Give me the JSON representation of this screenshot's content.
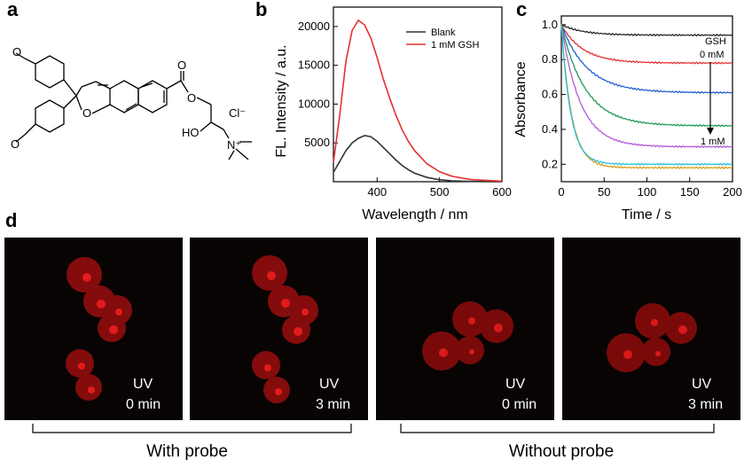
{
  "panels": {
    "a": {
      "letter": "a",
      "labels": {
        "ome_top": "O",
        "ome_bottom": "O",
        "ring_o": "O",
        "ester_o_dbl": "O",
        "ester_o": "O",
        "counter_ion": "Cl⁻",
        "hydroxyl": "HO",
        "ammonium": "N⁺"
      }
    },
    "b": {
      "letter": "b"
    },
    "c": {
      "letter": "c",
      "annotation_title": "GSH",
      "annotation_top": "0 mM",
      "annotation_bottom": "1 mM"
    },
    "d": {
      "letter": "d",
      "images": [
        {
          "caption1": "UV",
          "caption2": "0 min"
        },
        {
          "caption1": "UV",
          "caption2": "3 min"
        },
        {
          "caption1": "UV",
          "caption2": "0 min"
        },
        {
          "caption1": "UV",
          "caption2": "3 min"
        }
      ],
      "groups": [
        "With probe",
        "Without probe"
      ]
    }
  },
  "chart_data": [
    {
      "type": "line",
      "xlabel": "Wavelength / nm",
      "ylabel": "FL. Intensity / a.u.",
      "xlim": [
        330,
        600
      ],
      "ylim": [
        0,
        22500
      ],
      "xticks": [
        400,
        500,
        600
      ],
      "yticks": [
        5000,
        10000,
        15000,
        20000
      ],
      "x": [
        330,
        340,
        350,
        360,
        370,
        380,
        390,
        400,
        410,
        420,
        430,
        440,
        450,
        460,
        480,
        500,
        520,
        550,
        600
      ],
      "series": [
        {
          "name": "Blank",
          "color": "#333333",
          "values": [
            1200,
            2600,
            4000,
            5000,
            5600,
            5950,
            5800,
            5200,
            4400,
            3600,
            2800,
            2100,
            1550,
            1100,
            550,
            250,
            110,
            40,
            10
          ]
        },
        {
          "name": "1 mM GSH",
          "color": "#e53030",
          "values": [
            2500,
            8500,
            15500,
            19500,
            20800,
            20200,
            18500,
            16000,
            13200,
            10800,
            8600,
            6700,
            5200,
            4000,
            2300,
            1300,
            700,
            280,
            60
          ]
        }
      ],
      "legend": "top-right"
    },
    {
      "type": "line",
      "xlabel": "Time / s",
      "ylabel": "Absorbance",
      "xlim": [
        0,
        200
      ],
      "ylim": [
        0.1,
        1.05
      ],
      "xticks": [
        0,
        50,
        100,
        150,
        200
      ],
      "yticks": [
        0.2,
        0.4,
        0.6,
        0.8,
        1.0
      ],
      "series": [
        {
          "color": "#222222",
          "start": 1.0,
          "end": 0.94,
          "tau": 25
        },
        {
          "color": "#e53030",
          "start": 1.0,
          "end": 0.78,
          "tau": 25
        },
        {
          "color": "#1f5fd0",
          "start": 1.0,
          "end": 0.61,
          "tau": 30
        },
        {
          "color": "#1a9a55",
          "start": 1.0,
          "end": 0.42,
          "tau": 28
        },
        {
          "color": "#b05ad8",
          "start": 1.0,
          "end": 0.3,
          "tau": 22
        },
        {
          "color": "#d89a10",
          "start": 1.0,
          "end": 0.18,
          "tau": 12
        },
        {
          "color": "#22c0d8",
          "start": 1.0,
          "end": 0.2,
          "tau": 11
        }
      ]
    }
  ]
}
